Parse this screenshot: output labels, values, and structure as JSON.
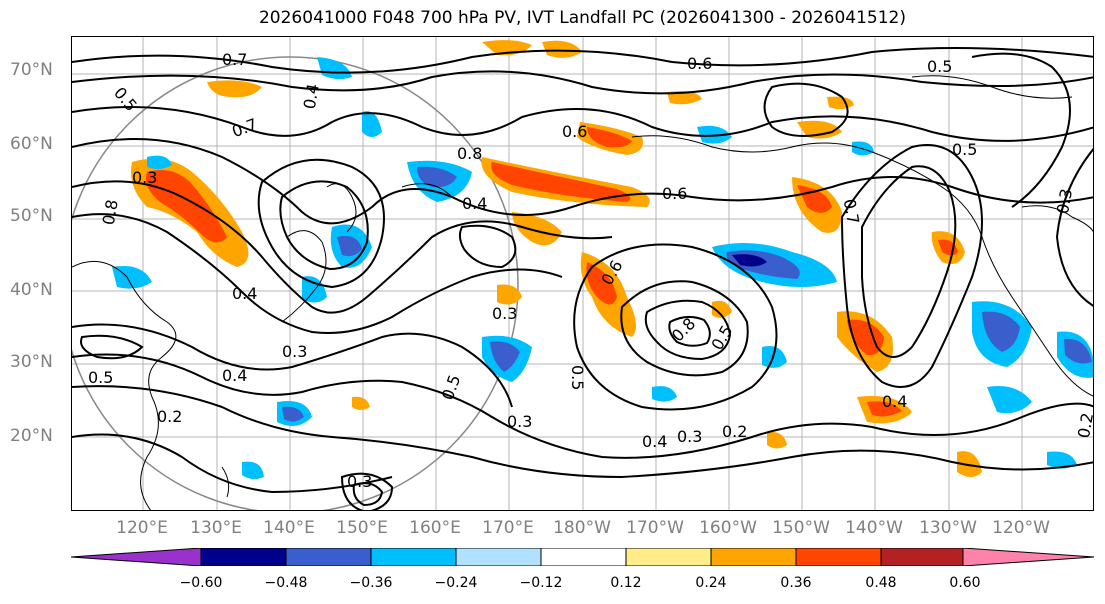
{
  "title": "2026041000 F048 700 hPa PV, IVT Landfall PC (2026041300 - 2026041512)",
  "lat_labels": [
    "70°N",
    "60°N",
    "50°N",
    "40°N",
    "30°N",
    "20°N"
  ],
  "lon_labels": [
    "120°E",
    "130°E",
    "140°E",
    "150°E",
    "160°E",
    "170°E",
    "180°W",
    "170°W",
    "160°W",
    "150°W",
    "140°W",
    "130°W",
    "120°W"
  ],
  "colorbar": {
    "ticks": [
      "−0.60",
      "−0.48",
      "−0.36",
      "−0.24",
      "−0.12",
      "0.12",
      "0.24",
      "0.36",
      "0.48",
      "0.60"
    ],
    "colors": [
      "#9932cc",
      "#00008b",
      "#3a5fcd",
      "#00bfff",
      "#b0e2ff",
      "#ffffff",
      "#ffec8b",
      "#ffa500",
      "#ff4500",
      "#b22222",
      "#ff82ab"
    ]
  },
  "contour_labels": [
    "0.7",
    "0.5",
    "0.4",
    "0.3",
    "0.8",
    "0.6",
    "0.6",
    "0.5",
    "0.4",
    "0.4",
    "0.3",
    "0.5",
    "0.7",
    "0.8",
    "0.6",
    "0.5",
    "0.3",
    "0.4",
    "0.2",
    "0.3",
    "0.4",
    "0.2",
    "0.6",
    "0.8",
    "0.5",
    "0.5",
    "0.7",
    "0.4",
    "0.3",
    "0.2",
    "0.3",
    "0.5",
    "0.3"
  ]
}
